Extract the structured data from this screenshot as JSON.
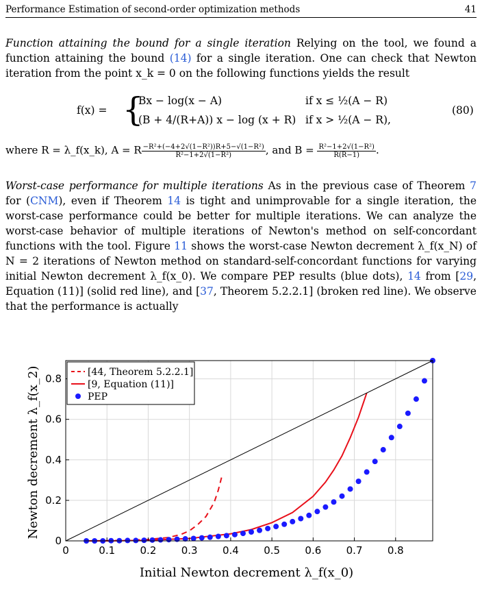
{
  "header": {
    "title": "Performance Estimation of second-order optimization methods",
    "page_number": "41"
  },
  "para1": {
    "heading": "Function attaining the bound for a single iteration",
    "text1": " Relying on the tool, we found a function attaining the bound ",
    "ref": "(14)",
    "text2": " for a single iteration. One can check that Newton iteration from the point x_k = 0 on the following functions yields the result"
  },
  "equation": {
    "lhs": "f(x) =",
    "case1_expr": "Bx − log(x − A)",
    "case1_cond": "if x ≤ ½(A − R)",
    "case2_expr": "(B + 4/(R+A)) x − log (x + R)",
    "case2_cond": "if x > ½(A − R),",
    "number": "(80)"
  },
  "where_line": {
    "prefix": "where R = λ_f(x_k), A = R",
    "a_num": "−R²+(−4+2√(1−R²))R+5−√(1−R²)",
    "a_den": "R²−1+2√(1−R²)",
    "mid": ", and B =",
    "b_num": "R²−1+2√(1−R²)",
    "b_den": "R(R−1)",
    "suffix": "."
  },
  "para2": {
    "heading": "Worst-case performance for multiple iterations",
    "t1": " As in the previous case of Theorem ",
    "r1": "7",
    "t2": " for (",
    "r2": "CNM",
    "t3": "), even if Theorem ",
    "r3": "14",
    "t4": " is tight and unimprovable for a single iteration, the worst-case performance could be better for multiple iterations. We can analyze the worst-case behavior of multiple iterations of Newton's method on self-concordant functions with the tool. Figure ",
    "r4": "11",
    "t5": " shows the worst-case Newton decrement λ_f(x_N) of N = 2 iterations of Newton method on standard-self-concordant functions for varying initial Newton decrement λ_f(x_0). We compare PEP results (blue dots), ",
    "r5": "14",
    "t6": " from [",
    "r6": "29",
    "t7": ", Equation (11)] (solid red line), and [",
    "r7": "37",
    "t8": ", Theorem 5.2.2.1] (broken red line). We observe that the performance is actually"
  },
  "chart_data": {
    "type": "line",
    "xlabel": "Initial Newton decrement λ_f(x_0)",
    "ylabel": "Newton decrement λ_f(x_2)",
    "xlim": [
      0,
      0.89
    ],
    "ylim": [
      0,
      0.89
    ],
    "xticks": [
      "0",
      "0.1",
      "0.2",
      "0.3",
      "0.4",
      "0.5",
      "0.6",
      "0.7",
      "0.8"
    ],
    "yticks": [
      "0",
      "0.2",
      "0.4",
      "0.6",
      "0.8"
    ],
    "grid": true,
    "legend_position": "top-left",
    "legend": [
      "[44, Theorem 5.2.2.1]",
      "[9, Equation (11)]",
      "PEP"
    ],
    "colors": {
      "red": "#e8101a",
      "blue": "#1a1aff",
      "identity": "#000000"
    },
    "series": [
      {
        "name": "[44, Theorem 5.2.2.1]",
        "style": "dashed",
        "x": [
          0.05,
          0.1,
          0.15,
          0.2,
          0.25,
          0.28,
          0.3,
          0.32,
          0.34,
          0.36,
          0.37,
          0.38
        ],
        "y": [
          0.0,
          0.001,
          0.003,
          0.007,
          0.017,
          0.032,
          0.05,
          0.08,
          0.12,
          0.19,
          0.25,
          0.33
        ]
      },
      {
        "name": "[9, Equation (11)]",
        "style": "solid",
        "x": [
          0.05,
          0.1,
          0.2,
          0.3,
          0.4,
          0.45,
          0.5,
          0.55,
          0.6,
          0.63,
          0.65,
          0.67,
          0.69,
          0.7,
          0.71,
          0.72,
          0.73
        ],
        "y": [
          0.0,
          0.0,
          0.003,
          0.012,
          0.035,
          0.056,
          0.09,
          0.14,
          0.22,
          0.29,
          0.35,
          0.42,
          0.51,
          0.56,
          0.61,
          0.67,
          0.73
        ]
      },
      {
        "name": "PEP",
        "style": "dots",
        "x": [
          0.05,
          0.07,
          0.09,
          0.11,
          0.13,
          0.15,
          0.17,
          0.19,
          0.21,
          0.23,
          0.25,
          0.27,
          0.29,
          0.31,
          0.33,
          0.35,
          0.37,
          0.39,
          0.41,
          0.43,
          0.45,
          0.47,
          0.49,
          0.51,
          0.53,
          0.55,
          0.57,
          0.59,
          0.61,
          0.63,
          0.65,
          0.67,
          0.69,
          0.71,
          0.73,
          0.75,
          0.77,
          0.79,
          0.81,
          0.83,
          0.85,
          0.87,
          0.89
        ],
        "y": [
          0.0,
          0.0,
          0.0,
          0.001,
          0.001,
          0.002,
          0.002,
          0.003,
          0.004,
          0.005,
          0.006,
          0.008,
          0.01,
          0.012,
          0.015,
          0.018,
          0.022,
          0.026,
          0.031,
          0.037,
          0.044,
          0.052,
          0.061,
          0.071,
          0.082,
          0.095,
          0.11,
          0.126,
          0.145,
          0.167,
          0.192,
          0.221,
          0.256,
          0.294,
          0.34,
          0.392,
          0.45,
          0.51,
          0.565,
          0.63,
          0.7,
          0.79,
          0.89
        ]
      },
      {
        "name": "",
        "style": "identity",
        "x": [
          0,
          0.89
        ],
        "y": [
          0,
          0.89
        ]
      }
    ]
  }
}
